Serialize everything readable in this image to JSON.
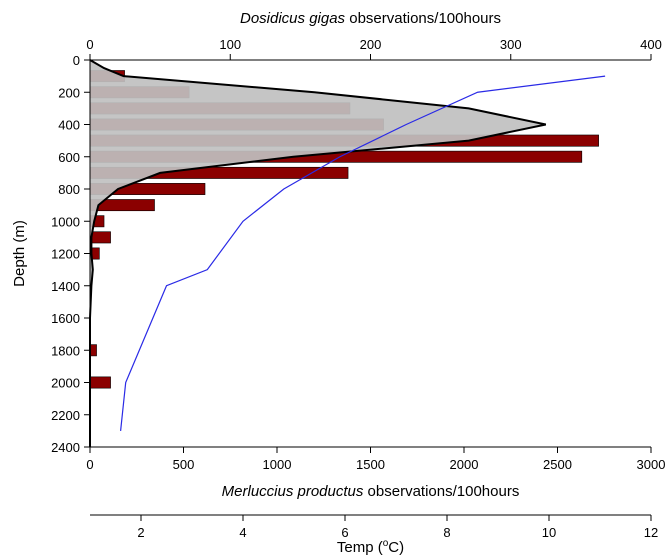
{
  "chart_data": {
    "type": "bar",
    "y_axis": {
      "label": "Depth (m)",
      "range": [
        0,
        2400
      ],
      "ticks": [
        0,
        200,
        400,
        600,
        800,
        1000,
        1200,
        1400,
        1600,
        1800,
        2000,
        2200,
        2400
      ],
      "inverted": true
    },
    "top_axis": {
      "label_italic": "Dosidicus gigas",
      "label_rest": " observations/100hours",
      "range": [
        0,
        400
      ],
      "ticks": [
        0,
        100,
        200,
        300,
        400
      ]
    },
    "bottom_axis": {
      "label_italic": "Merluccius productus",
      "label_rest": " observations/100hours",
      "range": [
        0,
        3000
      ],
      "ticks": [
        0,
        500,
        1000,
        1500,
        2000,
        2500,
        3000
      ]
    },
    "temp_axis": {
      "label_pre": "Temp (",
      "label_sup": "o",
      "label_post": "C)",
      "range": [
        1,
        12
      ],
      "ticks": [
        2,
        4,
        6,
        8,
        10,
        12
      ]
    },
    "series": [
      {
        "kind": "bar",
        "axis": "bottom",
        "color": "#8b0000",
        "bar_height_m": 70,
        "data": [
          {
            "depth": 100,
            "value": 185
          },
          {
            "depth": 200,
            "value": 530
          },
          {
            "depth": 300,
            "value": 1390
          },
          {
            "depth": 400,
            "value": 1570
          },
          {
            "depth": 500,
            "value": 2720
          },
          {
            "depth": 600,
            "value": 2630
          },
          {
            "depth": 700,
            "value": 1380
          },
          {
            "depth": 800,
            "value": 615
          },
          {
            "depth": 900,
            "value": 345
          },
          {
            "depth": 1000,
            "value": 75
          },
          {
            "depth": 1100,
            "value": 110
          },
          {
            "depth": 1200,
            "value": 50
          },
          {
            "depth": 1800,
            "value": 35
          },
          {
            "depth": 2000,
            "value": 110
          }
        ]
      },
      {
        "kind": "area",
        "axis": "top",
        "fill": "#c0c0c0",
        "stroke": "#000000",
        "data": [
          {
            "depth": 0,
            "value": 0
          },
          {
            "depth": 50,
            "value": 10
          },
          {
            "depth": 100,
            "value": 24
          },
          {
            "depth": 200,
            "value": 160
          },
          {
            "depth": 300,
            "value": 270
          },
          {
            "depth": 400,
            "value": 325
          },
          {
            "depth": 500,
            "value": 270
          },
          {
            "depth": 600,
            "value": 145
          },
          {
            "depth": 700,
            "value": 50
          },
          {
            "depth": 800,
            "value": 20
          },
          {
            "depth": 900,
            "value": 6
          },
          {
            "depth": 1000,
            "value": 3
          },
          {
            "depth": 1100,
            "value": 1
          },
          {
            "depth": 1200,
            "value": 1
          },
          {
            "depth": 1300,
            "value": 2
          },
          {
            "depth": 1400,
            "value": 1
          },
          {
            "depth": 1600,
            "value": 0
          },
          {
            "depth": 2400,
            "value": 0
          }
        ]
      },
      {
        "kind": "line",
        "axis": "temp",
        "color": "#2a2ae6",
        "data": [
          {
            "depth": 100,
            "value": 11.1
          },
          {
            "depth": 200,
            "value": 8.6
          },
          {
            "depth": 400,
            "value": 7.2
          },
          {
            "depth": 600,
            "value": 5.9
          },
          {
            "depth": 800,
            "value": 4.8
          },
          {
            "depth": 1000,
            "value": 4.0
          },
          {
            "depth": 1300,
            "value": 3.3
          },
          {
            "depth": 1400,
            "value": 2.5
          },
          {
            "depth": 2000,
            "value": 1.7
          },
          {
            "depth": 2300,
            "value": 1.6
          }
        ]
      }
    ]
  }
}
